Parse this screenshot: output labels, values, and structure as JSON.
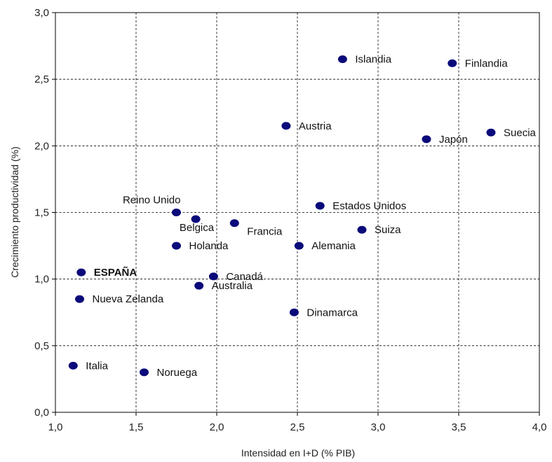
{
  "chart_data": {
    "type": "scatter",
    "title": "",
    "xlabel": "Intensidad en I+D (% PIB)",
    "ylabel": "Crecimiento productividad (%)",
    "xlim": [
      1.0,
      4.0
    ],
    "ylim": [
      0.0,
      3.0
    ],
    "x_ticks": [
      "1,0",
      "1,5",
      "2,0",
      "2,5",
      "3,0",
      "3,5",
      "4,0"
    ],
    "y_ticks": [
      "0,0",
      "0,5",
      "1,0",
      "1,5",
      "2,0",
      "2,5",
      "3,0"
    ],
    "grid": true,
    "marker_color": "#0a0a7a",
    "points": [
      {
        "label": "Islandia",
        "x": 2.78,
        "y": 2.65,
        "label_pos": "right"
      },
      {
        "label": "Finlandia",
        "x": 3.46,
        "y": 2.62,
        "label_pos": "right"
      },
      {
        "label": "Austria",
        "x": 2.43,
        "y": 2.15,
        "label_pos": "right"
      },
      {
        "label": "Suecia",
        "x": 3.7,
        "y": 2.1,
        "label_pos": "right"
      },
      {
        "label": "Japón",
        "x": 3.3,
        "y": 2.05,
        "label_pos": "right"
      },
      {
        "label": "Reino Unido",
        "x": 1.75,
        "y": 1.5,
        "label_pos": "above-left"
      },
      {
        "label": "Estados Unidos",
        "x": 2.64,
        "y": 1.55,
        "label_pos": "right"
      },
      {
        "label": "Belgica",
        "x": 1.87,
        "y": 1.45,
        "label_pos": "below-left"
      },
      {
        "label": "Francia",
        "x": 2.11,
        "y": 1.42,
        "label_pos": "below-right"
      },
      {
        "label": "Suiza",
        "x": 2.9,
        "y": 1.37,
        "label_pos": "right"
      },
      {
        "label": "Holanda",
        "x": 1.75,
        "y": 1.25,
        "label_pos": "right"
      },
      {
        "label": "Alemania",
        "x": 2.51,
        "y": 1.25,
        "label_pos": "right"
      },
      {
        "label": "ESPAÑA",
        "x": 1.16,
        "y": 1.05,
        "label_pos": "right",
        "bold": true
      },
      {
        "label": "Canadá",
        "x": 1.98,
        "y": 1.02,
        "label_pos": "right"
      },
      {
        "label": "Australia",
        "x": 1.89,
        "y": 0.95,
        "label_pos": "right"
      },
      {
        "label": "Nueva Zelanda",
        "x": 1.15,
        "y": 0.85,
        "label_pos": "right"
      },
      {
        "label": "Dinamarca",
        "x": 2.48,
        "y": 0.75,
        "label_pos": "right"
      },
      {
        "label": "Italia",
        "x": 1.11,
        "y": 0.35,
        "label_pos": "right"
      },
      {
        "label": "Noruega",
        "x": 1.55,
        "y": 0.3,
        "label_pos": "right"
      }
    ]
  }
}
